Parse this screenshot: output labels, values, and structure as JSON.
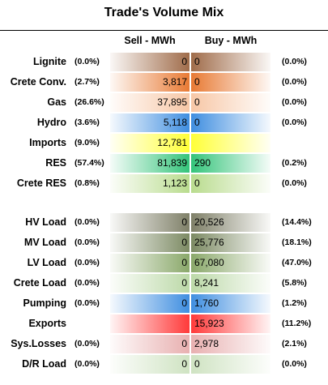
{
  "title": "Trade's Volume Mix",
  "chart_data": {
    "type": "table",
    "columns": [
      "Sell - MWh",
      "Buy - MWh"
    ],
    "rows": [
      {
        "label": "Lignite",
        "sell_pct": "(0.0%)",
        "sell": "0",
        "buy": "0",
        "buy_pct": "(0.0%)",
        "color": "#a06c4a"
      },
      {
        "label": "Crete Conv.",
        "sell_pct": "(2.7%)",
        "sell": "3,817",
        "buy": "0",
        "buy_pct": "(0.0%)",
        "color": "#e87a34"
      },
      {
        "label": "Gas",
        "sell_pct": "(26.6%)",
        "sell": "37,895",
        "buy": "0",
        "buy_pct": "(0.0%)",
        "color": "#f7c7a6"
      },
      {
        "label": "Hydro",
        "sell_pct": "(3.6%)",
        "sell": "5,118",
        "buy": "0",
        "buy_pct": "(0.0%)",
        "color": "#3f8ee0"
      },
      {
        "label": "Imports",
        "sell_pct": "(9.0%)",
        "sell": "12,781",
        "buy": "",
        "buy_pct": "",
        "color": "#ffff38"
      },
      {
        "label": "RES",
        "sell_pct": "(57.4%)",
        "sell": "81,839",
        "buy": "290",
        "buy_pct": "(0.2%)",
        "color": "#34c47a"
      },
      {
        "label": "Crete RES",
        "sell_pct": "(0.8%)",
        "sell": "1,123",
        "buy": "0",
        "buy_pct": "(0.0%)",
        "color": "#b9dc8e"
      },
      {
        "label": "HV Load",
        "sell_pct": "(0.0%)",
        "sell": "0",
        "buy": "20,526",
        "buy_pct": "(14.4%)",
        "color": "#7f8068"
      },
      {
        "label": "MV Load",
        "sell_pct": "(0.0%)",
        "sell": "0",
        "buy": "25,776",
        "buy_pct": "(18.1%)",
        "color": "#7c8a63"
      },
      {
        "label": "LV Load",
        "sell_pct": "(0.0%)",
        "sell": "0",
        "buy": "67,080",
        "buy_pct": "(47.0%)",
        "color": "#8aa86a"
      },
      {
        "label": "Crete Load",
        "sell_pct": "(0.0%)",
        "sell": "0",
        "buy": "8,241",
        "buy_pct": "(5.8%)",
        "color": "#bcd9a8"
      },
      {
        "label": "Pumping",
        "sell_pct": "(0.0%)",
        "sell": "0",
        "buy": "1,760",
        "buy_pct": "(1.2%)",
        "color": "#3f8ee0"
      },
      {
        "label": "Exports",
        "sell_pct": "",
        "sell": "",
        "buy": "15,923",
        "buy_pct": "(11.2%)",
        "color": "#ff3a3a"
      },
      {
        "label": "Sys.Losses",
        "sell_pct": "(0.0%)",
        "sell": "0",
        "buy": "2,978",
        "buy_pct": "(2.1%)",
        "color": "#e8b0b0"
      },
      {
        "label": "D/R Load",
        "sell_pct": "(0.0%)",
        "sell": "0",
        "buy": "0",
        "buy_pct": "(0.0%)",
        "color": "#cfe3c2"
      }
    ]
  }
}
